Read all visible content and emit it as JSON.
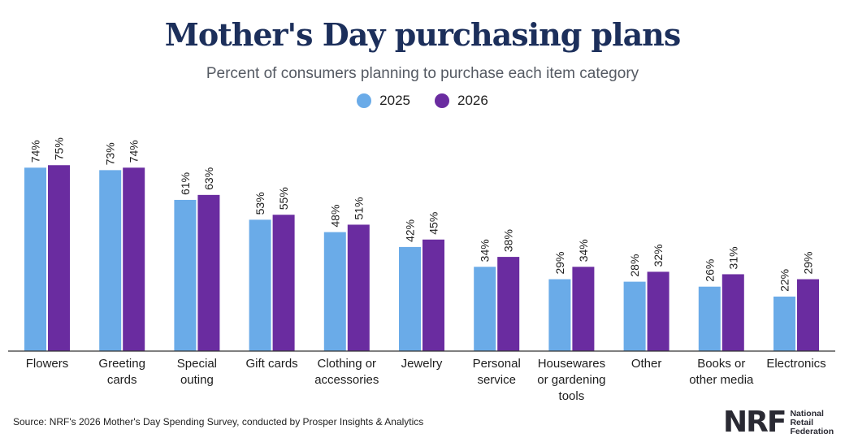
{
  "header": {
    "title": "Mother's Day purchasing plans",
    "subtitle": "Percent of consumers planning to purchase each item category"
  },
  "legend": [
    {
      "label": "2025",
      "color": "#6aabe8"
    },
    {
      "label": "2026",
      "color": "#6a2ca0"
    }
  ],
  "chart_data": {
    "type": "bar",
    "title": "Mother's Day purchasing plans",
    "subtitle": "Percent of consumers planning to purchase each item category",
    "categories": [
      [
        "Flowers"
      ],
      [
        "Greeting",
        "cards"
      ],
      [
        "Special",
        "outing"
      ],
      [
        "Gift cards"
      ],
      [
        "Clothing or",
        "accessories"
      ],
      [
        "Jewelry"
      ],
      [
        "Personal",
        "service"
      ],
      [
        "Housewares",
        "or gardening",
        "tools"
      ],
      [
        "Other"
      ],
      [
        "Books or",
        "other media"
      ],
      [
        "Electronics"
      ]
    ],
    "series": [
      {
        "name": "2025",
        "color": "#6aabe8",
        "values": [
          74,
          73,
          61,
          53,
          48,
          42,
          34,
          29,
          28,
          26,
          22
        ]
      },
      {
        "name": "2026",
        "color": "#6a2ca0",
        "values": [
          75,
          74,
          63,
          55,
          51,
          45,
          38,
          34,
          32,
          31,
          29
        ]
      }
    ],
    "value_suffix": "%",
    "ylim": [
      0,
      100
    ],
    "grid": false,
    "legend_position": "top-center"
  },
  "footer": {
    "source": "Source: NRF's 2026 Mother's Day Spending Survey, conducted by Prosper Insights & Analytics",
    "logo_mark": "NRF",
    "logo_lines": [
      "National",
      "Retail",
      "Federation"
    ]
  }
}
